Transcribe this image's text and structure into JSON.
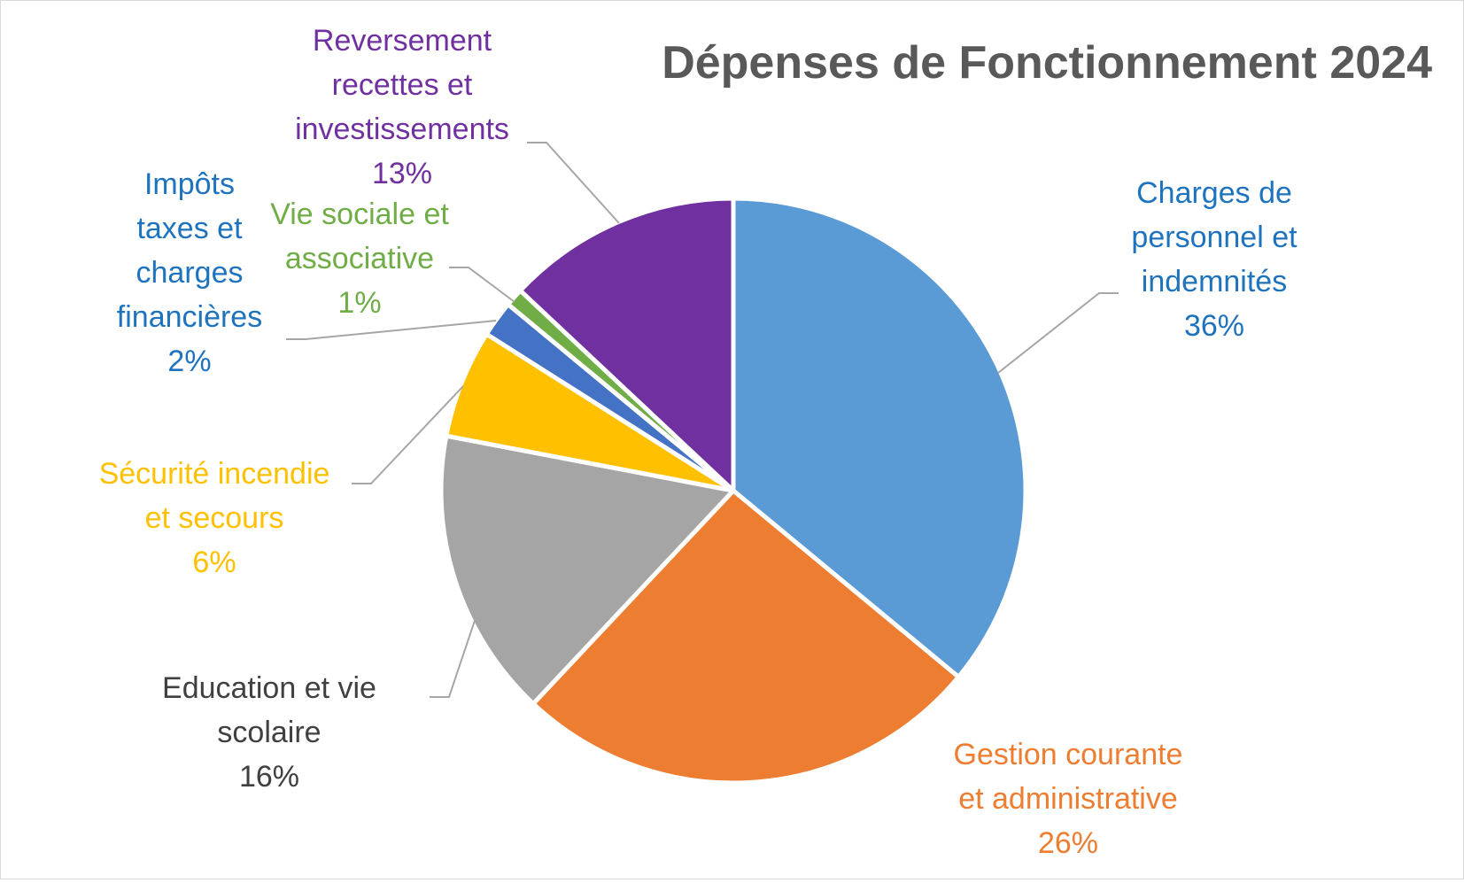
{
  "chart_data": {
    "type": "pie",
    "title": "Dépenses de Fonctionnement 2024",
    "start": "12 o'clock",
    "direction": "clockwise",
    "legend": "none",
    "slices": [
      {
        "label": [
          "Charges de",
          "personnel et",
          "indemnités"
        ],
        "value": 36,
        "value_label": "36%",
        "color": "#5b9bd5",
        "text_color": "#1e73be"
      },
      {
        "label": [
          "Gestion courante",
          "et administrative"
        ],
        "value": 26,
        "value_label": "26%",
        "color": "#ed7d31",
        "text_color": "#ed7d31"
      },
      {
        "label": [
          "Education et vie",
          "scolaire"
        ],
        "value": 16,
        "value_label": "16%",
        "color": "#a5a5a5",
        "text_color": "#404040"
      },
      {
        "label": [
          "Sécurité incendie",
          "et secours"
        ],
        "value": 6,
        "value_label": "6%",
        "color": "#ffc000",
        "text_color": "#ffc000"
      },
      {
        "label": [
          "Impôts",
          "taxes et",
          "charges",
          "financières"
        ],
        "value": 2,
        "value_label": "2%",
        "color": "#4472c4",
        "text_color": "#1e73be"
      },
      {
        "label": [
          "Vie sociale et",
          "associative"
        ],
        "value": 1,
        "value_label": "1%",
        "color": "#70ad47",
        "text_color": "#70ad47"
      },
      {
        "label": [
          "Reversement",
          "recettes et",
          "investissements"
        ],
        "value": 13,
        "value_label": "13%",
        "color": "#7030a0",
        "text_color": "#7030a0"
      }
    ]
  }
}
